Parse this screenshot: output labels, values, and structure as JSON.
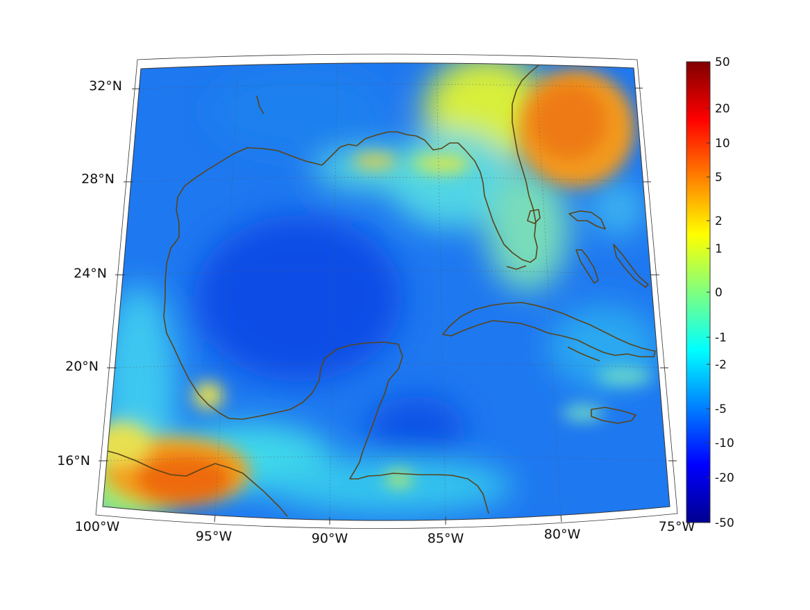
{
  "map": {
    "lat_labels": [
      "32°N",
      "28°N",
      "24°N",
      "20°N",
      "16°N"
    ],
    "lon_labels": [
      "100°W",
      "95°W",
      "90°W",
      "85°W",
      "80°W",
      "75°W"
    ]
  },
  "colorbar": {
    "ticks": [
      "50",
      "20",
      "10",
      "5",
      "2",
      "1",
      "0",
      "-1",
      "-2",
      "-5",
      "-10",
      "-20",
      "-50"
    ],
    "colors": [
      "#800000",
      "#ff0000",
      "#ff7f00",
      "#ffff00",
      "#7fff7f",
      "#00ffff",
      "#007fff",
      "#0000ff",
      "#00008f"
    ]
  },
  "colors": {
    "background_field": "#1e78f0",
    "coastline": "#5a4418",
    "graticule": "#555555"
  }
}
